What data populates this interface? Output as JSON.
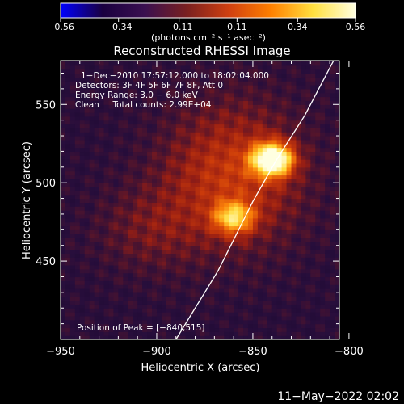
{
  "chart_data": {
    "type": "heatmap",
    "title": "Reconstructed RHESSI Image",
    "xlabel": "Heliocentric X (arcsec)",
    "ylabel": "Heliocentric Y (arcsec)",
    "xlim": [
      -950,
      -805
    ],
    "ylim": [
      400,
      578
    ],
    "x_ticks": [
      -950,
      -900,
      -850,
      -800
    ],
    "x_tick_labels": [
      "−950",
      "−900",
      "−850",
      "−800"
    ],
    "y_ticks": [
      450,
      500,
      550
    ],
    "y_tick_labels": [
      "450",
      "500",
      "550"
    ],
    "colorbar": {
      "range": [
        -0.56,
        0.56
      ],
      "ticks": [
        -0.56,
        -0.34,
        -0.11,
        0.11,
        0.34,
        0.56
      ],
      "tick_labels": [
        "−0.56",
        "−0.34",
        "−0.11",
        "0.11",
        "0.34",
        "0.56"
      ],
      "unit_label": "(photons cm⁻² s⁻¹ asec⁻²)",
      "colors": [
        "#0000ff",
        "#1a0040",
        "#3a1050",
        "#7a2020",
        "#d04010",
        "#ff8000",
        "#ffe040",
        "#ffffe0"
      ]
    },
    "annotations": [
      "1−Dec−2010 17:57:12.000 to 18:02:04.000",
      "Detectors: 3F 4F 5F 6F 7F 8F, Att 0",
      "Energy Range: 3.0 − 6.0 keV",
      "Clean     Total counts: 2.99E+04"
    ],
    "peak_label": "Position of Peak = [−840,515]",
    "sources": [
      {
        "x": -840,
        "y": 515,
        "intensity": 0.56
      },
      {
        "x": -860,
        "y": 478,
        "intensity": 0.34
      }
    ],
    "limb": [
      [
        -890,
        400
      ],
      [
        -868,
        444
      ],
      [
        -850,
        488
      ],
      [
        -838,
        514
      ],
      [
        -823,
        543
      ],
      [
        -808,
        578
      ]
    ]
  },
  "footer": {
    "date": "11−May−2022 02:02"
  }
}
